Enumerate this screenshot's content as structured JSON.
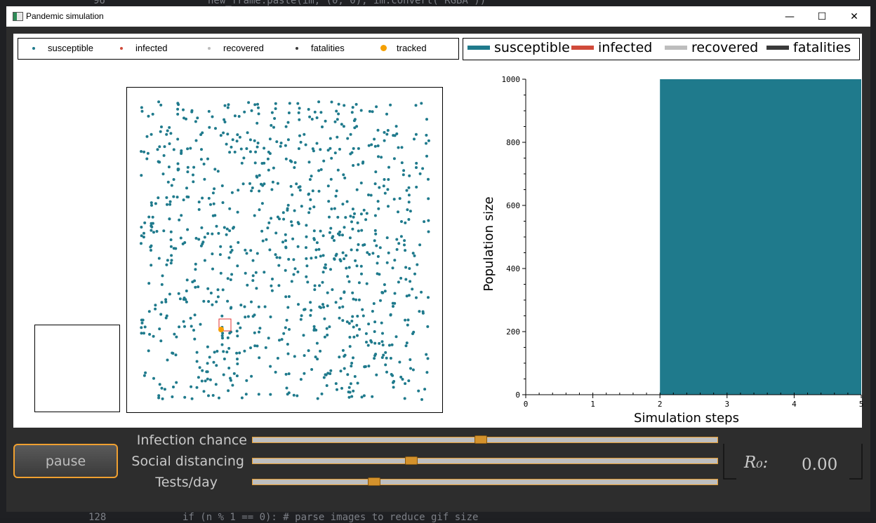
{
  "window": {
    "title": "Pandemic simulation",
    "minimize_glyph": "—",
    "maximize_glyph": "☐",
    "close_glyph": "✕"
  },
  "background_code": {
    "top_line_no": "96",
    "top_line": "new_frame.paste(im, (0, 0), im.convert('RGBA'))",
    "bottom_line_no": "128",
    "bottom_line": "if (n % 1 == 0): # parse images to reduce gif size"
  },
  "scatter_legend": {
    "items": [
      {
        "label": "susceptible",
        "color": "#1f7a8c"
      },
      {
        "label": "infected",
        "color": "#d04a3a"
      },
      {
        "label": "recovered",
        "color": "#bdbdbd"
      },
      {
        "label": "fatalities",
        "color": "#3a3a3a"
      },
      {
        "label": "tracked",
        "color": "#f5a000"
      }
    ]
  },
  "chart_legend": {
    "items": [
      {
        "label": "susceptible",
        "color": "#1f7a8c"
      },
      {
        "label": "infected",
        "color": "#d04a3a"
      },
      {
        "label": "recovered",
        "color": "#bdbdbd"
      },
      {
        "label": "fatalities",
        "color": "#3a3a3a"
      }
    ]
  },
  "chart_data": {
    "type": "area",
    "xlabel": "Simulation steps",
    "ylabel": "Population size",
    "xlim": [
      0,
      5
    ],
    "ylim": [
      0,
      1000
    ],
    "xticks": [
      0,
      1,
      2,
      3,
      4,
      5
    ],
    "yticks": [
      0,
      200,
      400,
      600,
      800,
      1000
    ],
    "series": [
      {
        "name": "susceptible",
        "color": "#1f7a8c",
        "x": [
          2,
          3,
          4,
          5
        ],
        "values": [
          1000,
          1000,
          1000,
          1000
        ]
      }
    ]
  },
  "controls": {
    "pause_label": "pause",
    "sliders": [
      {
        "label": "Infection chance",
        "value": 0.49
      },
      {
        "label": "Social distancing",
        "value": 0.34
      },
      {
        "label": "Tests/day",
        "value": 0.26
      }
    ],
    "r0_label": "R₀:",
    "r0_value": "0.00"
  },
  "colors": {
    "accent": "#f0a030",
    "susceptible": "#1f7a8c",
    "tracked": "#f5a000",
    "highlight": "#e03030"
  }
}
